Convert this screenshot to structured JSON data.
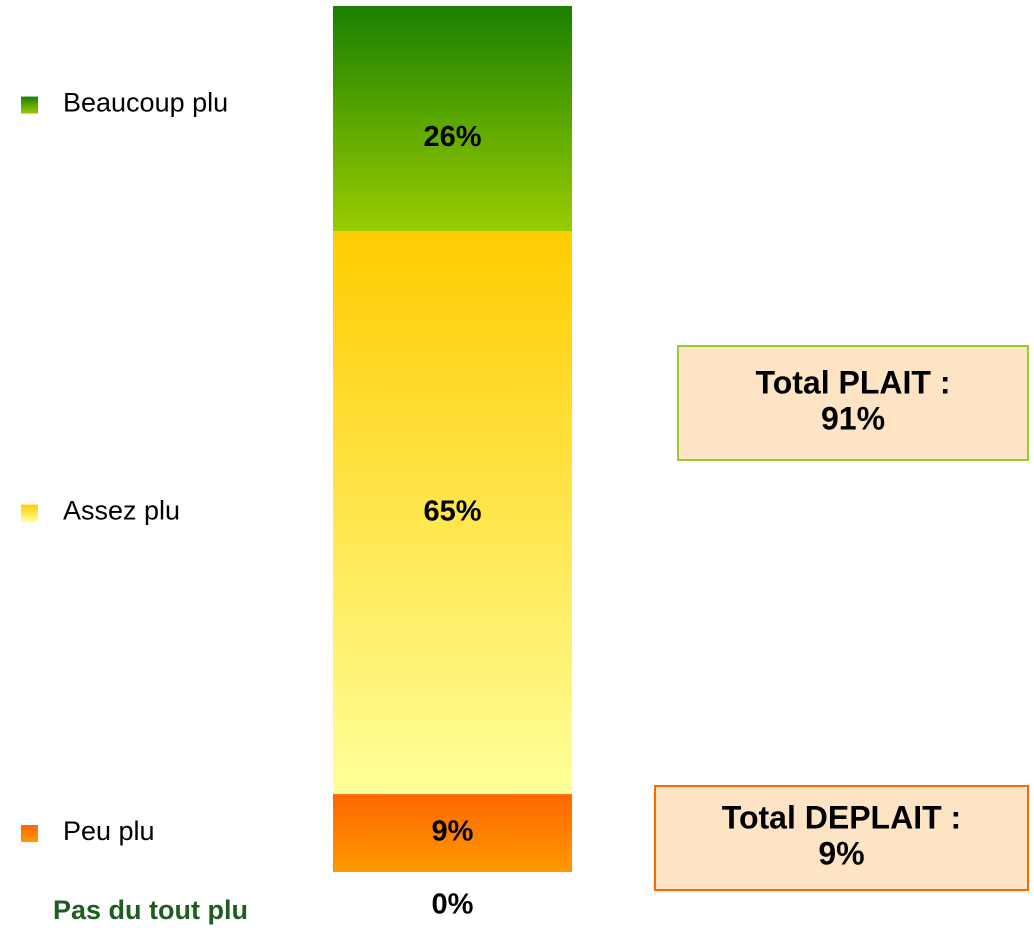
{
  "chart_data": {
    "type": "bar",
    "stacked": true,
    "ylim": [
      0,
      100
    ],
    "series": [
      {
        "name": "Pas du tout plu",
        "color": [
          "#1f5c1f",
          "#1f5c1f"
        ],
        "values": [
          0
        ],
        "value_labels": [
          "0%"
        ]
      },
      {
        "name": "Peu plu",
        "color": [
          "#ff6600",
          "#ff9900"
        ],
        "values": [
          9
        ],
        "value_labels": [
          "9%"
        ]
      },
      {
        "name": "Assez plu",
        "color": [
          "#ffcc00",
          "#ffff99"
        ],
        "values": [
          65
        ],
        "value_labels": [
          "65%"
        ]
      },
      {
        "name": "Beaucoup plu",
        "color": [
          "#1a8000",
          "#99cc00"
        ],
        "values": [
          26
        ],
        "value_labels": [
          "26%"
        ]
      }
    ],
    "annotations": [
      {
        "lines": [
          "Total PLAIT :",
          "91%"
        ],
        "border": "#99cc33",
        "fill": "#fde4c4"
      },
      {
        "lines": [
          "Total DEPLAIT :",
          "9%"
        ],
        "border": "#ff6600",
        "fill": "#fde4c4"
      }
    ]
  }
}
